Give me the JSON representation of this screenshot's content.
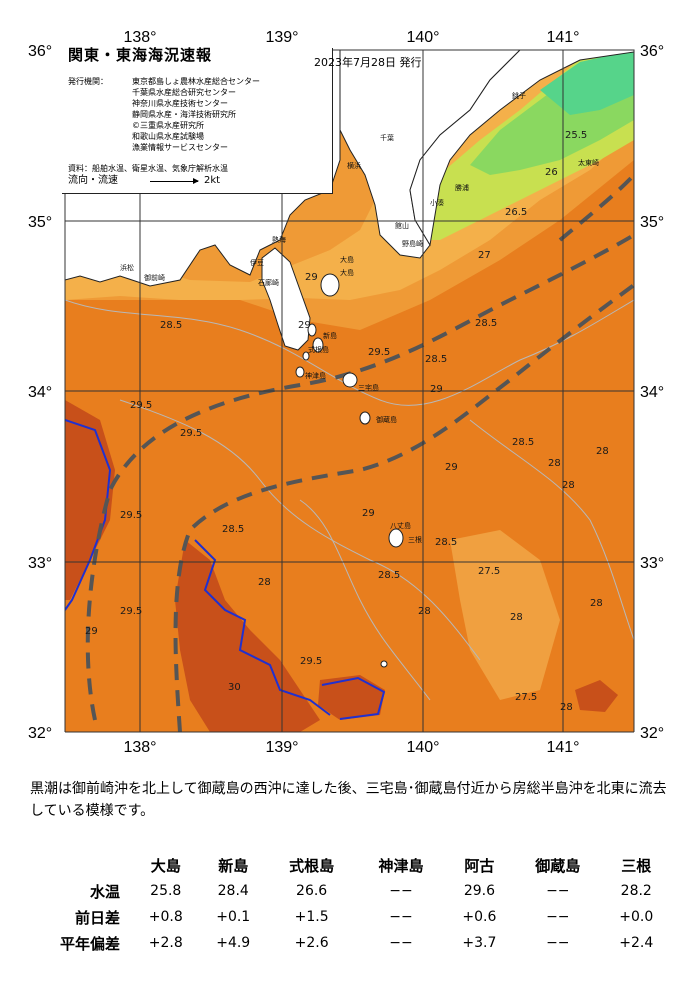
{
  "map": {
    "region_title": "関東・東海海況速報",
    "issue_date": "2023年7月28日 発行",
    "issuers_label": "発行機関：",
    "issuers": [
      "東京都島しょ農林水産総合センター",
      "千葉県水産総合研究センター",
      "神奈川県水産技術センター",
      "静岡県水産・海洋技術研究所",
      "©三重県水産研究所",
      "和歌山県水産試験場",
      "漁業情報サービスセンター"
    ],
    "source": "資料：船舶水温、衛星水温、気象庁解析水温",
    "flow_label": "流向・流速",
    "flow_scale": "2kt",
    "lon_labels": [
      "138°",
      "139°",
      "140°",
      "141°"
    ],
    "lat_labels": [
      "36°",
      "35°",
      "34°",
      "33°",
      "32°"
    ],
    "isotherm_labels": [
      "29.5",
      "29.5",
      "29.5",
      "29.5",
      "29",
      "29",
      "29",
      "28.5",
      "28.5",
      "28.5",
      "28.5",
      "28.5",
      "28",
      "28",
      "28",
      "28",
      "28",
      "27.5",
      "27.5",
      "27",
      "26.5",
      "26",
      "25.5",
      "29",
      "29.5",
      "29",
      "28.5",
      "28",
      "29.5",
      "30",
      "29",
      "28.5",
      "28",
      "28"
    ],
    "place_names": [
      "大島",
      "新島",
      "式根島",
      "神津島",
      "三宅島",
      "御蔵島",
      "八丈島",
      "大島",
      "三根",
      "館山",
      "平塚",
      "横浜",
      "千葉",
      "銚子",
      "太東崎",
      "勝浦",
      "小湊",
      "野島崎",
      "御前崎",
      "伊豆",
      "石廊崎",
      "浜松",
      "熱海"
    ],
    "colors": {
      "sea_warm": "#e87e1e",
      "sea_hot": "#c8501a",
      "sea_mild": "#f0a040",
      "sea_cool": "#f8c860",
      "sea_cold": "#a0e060",
      "sea_colder": "#60d880",
      "land": "#ffffff",
      "grid": "#333333",
      "kuroshio": "#555555",
      "contour_30": "#2030d0",
      "contour_thin": "#b8b8b8"
    }
  },
  "description": "黒潮は御前崎沖を北上して御蔵島の西沖に達した後、三宅島･御蔵島付近から房総半島沖を北東に流去している模様です。",
  "table": {
    "islands": [
      "大島",
      "新島",
      "式根島",
      "神津島",
      "阿古",
      "御蔵島",
      "三根"
    ],
    "rows": [
      {
        "label": "水温",
        "values": [
          "25.8",
          "28.4",
          "26.6",
          "−−",
          "29.6",
          "−−",
          "28.2"
        ]
      },
      {
        "label": "前日差",
        "values": [
          "+0.8",
          "+0.1",
          "+1.5",
          "−−",
          "+0.6",
          "−−",
          "+0.0"
        ]
      },
      {
        "label": "平年偏差",
        "values": [
          "+2.8",
          "+4.9",
          "+2.6",
          "−−",
          "+3.7",
          "−−",
          "+2.4"
        ]
      }
    ]
  }
}
